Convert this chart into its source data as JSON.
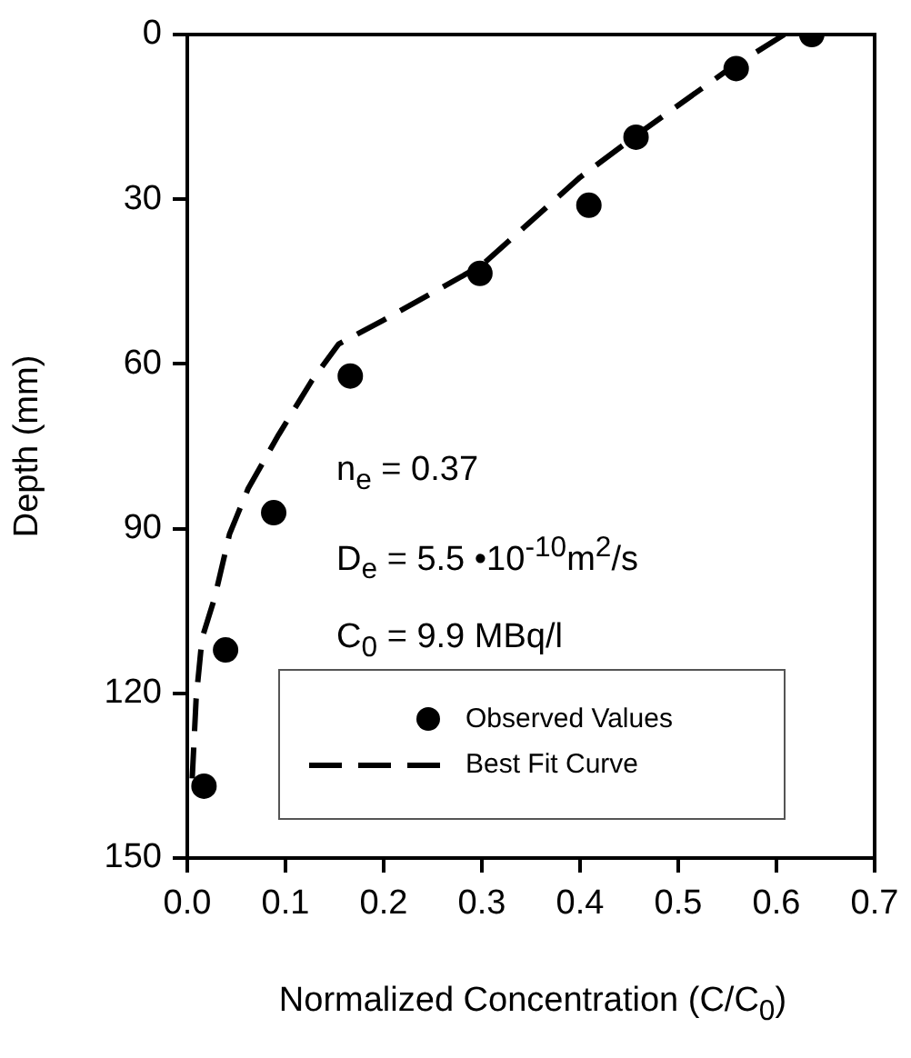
{
  "chart_data": {
    "type": "scatter",
    "xlabel": "Normalized Concentration (C/C$_{0}$)",
    "ylabel": "Depth (mm)",
    "xlim": [
      0,
      0.7
    ],
    "xticks": [
      {
        "value": 0,
        "label": "0.0"
      },
      0.1,
      0.2,
      0.3,
      0.4,
      0.5,
      0.6,
      0.7
    ],
    "ylim": [
      150,
      0
    ],
    "yticks": [
      0,
      30,
      60,
      90,
      120,
      150
    ],
    "grid": false,
    "legend": "bottom",
    "annotations": [
      "n$_{e}$ = 0.37",
      "D$_{e}$ = 5.5 •10$^{-10}$m$^{2}$/s",
      "C$_{0}$ = 9.9 MBq/l"
    ],
    "series": [
      {
        "name": "Observed Values",
        "type": "scatter",
        "marker": "circle",
        "color": "#000000",
        "x": [
          0.636,
          0.559,
          0.457,
          0.409,
          0.298,
          0.166,
          0.088,
          0.039,
          0.017
        ],
        "values": [
          0,
          6.2,
          18.7,
          31.1,
          43.5,
          62.2,
          87.1,
          112.1,
          136.9
        ]
      },
      {
        "name": "Best Fit Curve",
        "type": "line",
        "line_style": "dashed",
        "color": "#000000",
        "x": [
          0.608,
          0.55,
          0.46,
          0.4,
          0.3,
          0.2,
          0.154,
          0.127,
          0.093,
          0.062,
          0.043,
          0.028,
          0.015,
          0.009,
          0.005
        ],
        "values": [
          0,
          6.5,
          18,
          26,
          42,
          52,
          56.4,
          63,
          72.9,
          82.7,
          91,
          102.5,
          110,
          121,
          135.5
        ]
      }
    ]
  }
}
